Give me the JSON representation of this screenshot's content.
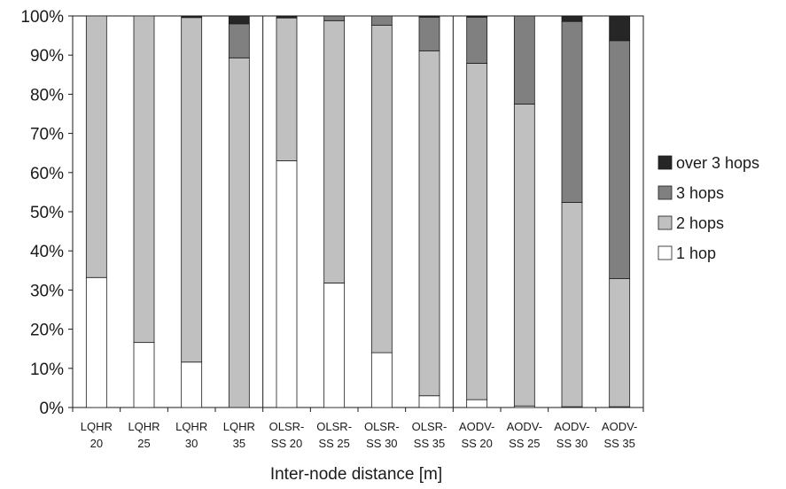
{
  "chart_data": {
    "type": "bar",
    "stacked": true,
    "percent": true,
    "title": "",
    "xlabel": "Inter-node distance [m]",
    "ylabel": "",
    "ylim": [
      0,
      100
    ],
    "yticks": [
      "0%",
      "10%",
      "20%",
      "30%",
      "40%",
      "50%",
      "60%",
      "70%",
      "80%",
      "90%",
      "100%"
    ],
    "legend_position": "right",
    "grid": false,
    "categories": [
      [
        "LQHR",
        "20"
      ],
      [
        "LQHR",
        "25"
      ],
      [
        "LQHR",
        "30"
      ],
      [
        "LQHR",
        "35"
      ],
      [
        "OLSR-",
        "SS 20"
      ],
      [
        "OLSR-",
        "SS 25"
      ],
      [
        "OLSR-",
        "SS 30"
      ],
      [
        "OLSR-",
        "SS 35"
      ],
      [
        "AODV-",
        "SS 20"
      ],
      [
        "AODV-",
        "SS 25"
      ],
      [
        "AODV-",
        "SS 30"
      ],
      [
        "AODV-",
        "SS 35"
      ]
    ],
    "series": [
      {
        "name": "1 hop",
        "color": "#ffffff",
        "values": [
          33.2,
          16.6,
          11.6,
          0,
          63.0,
          31.8,
          14.0,
          3.0,
          2.0,
          0.4,
          0.2,
          0.2
        ]
      },
      {
        "name": "2 hops",
        "color": "#c0c0c0",
        "values": [
          66.8,
          83.4,
          88.0,
          89.3,
          36.5,
          67.0,
          83.6,
          88.1,
          85.9,
          77.1,
          52.2,
          32.7
        ]
      },
      {
        "name": "3 hops",
        "color": "#808080",
        "values": [
          0,
          0,
          0,
          8.7,
          0,
          1.2,
          2.4,
          8.6,
          11.8,
          22.5,
          46.2,
          60.8
        ]
      },
      {
        "name": "over 3 hops",
        "color": "#262626",
        "values": [
          0,
          0,
          0.4,
          2.0,
          0.5,
          0,
          0,
          0.3,
          0.3,
          0,
          1.4,
          6.3
        ]
      }
    ],
    "group_separators_after": [
      4,
      8
    ]
  }
}
